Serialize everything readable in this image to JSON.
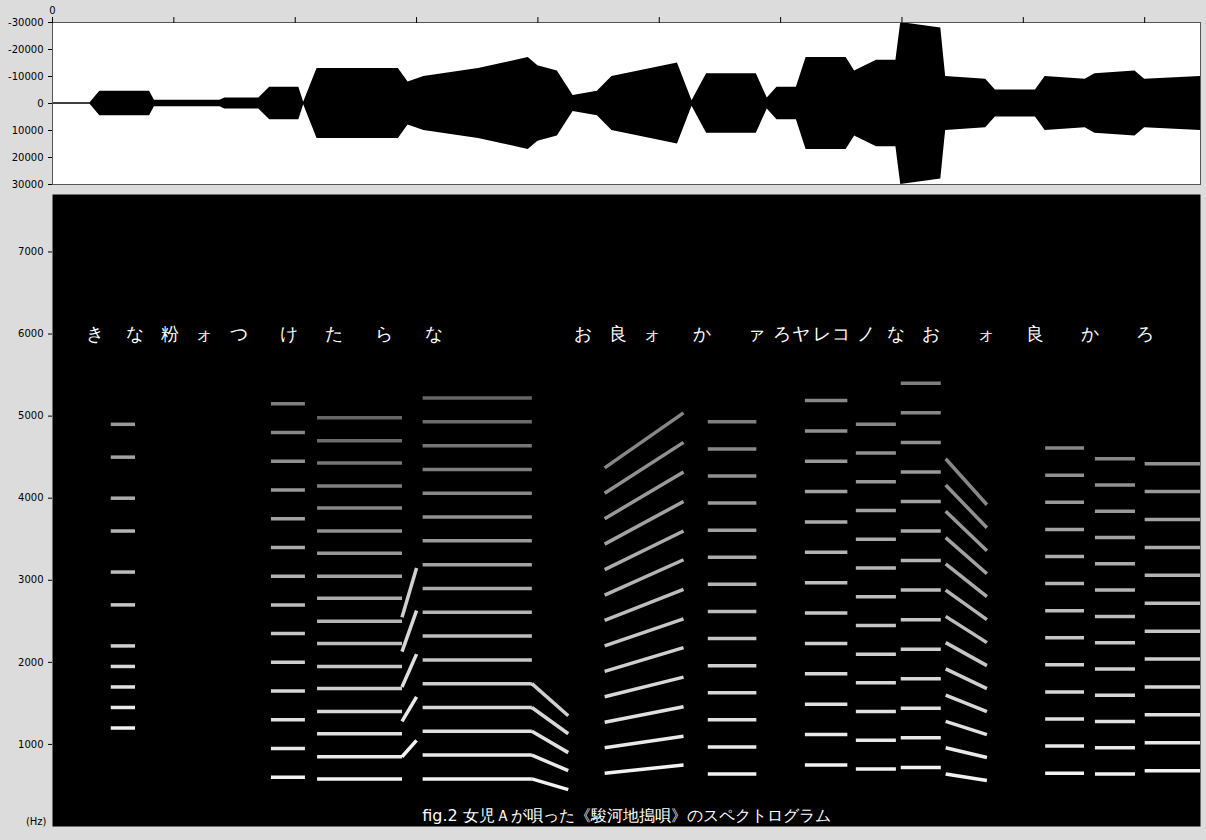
{
  "chart_data": [
    {
      "type": "waveform",
      "color": "#000000",
      "xlim": [
        0,
        9.46
      ],
      "xticks": [
        0
      ],
      "x_minor_ticks": [
        1,
        2,
        3,
        4,
        5,
        6,
        7,
        8,
        9
      ],
      "ylim": [
        -30000,
        30000
      ],
      "yticks": [
        -30000,
        -20000,
        -10000,
        0,
        10000,
        20000,
        30000
      ],
      "envelope": {
        "t": [
          0,
          0.31,
          0.39,
          0.8,
          0.84,
          1.38,
          1.42,
          1.7,
          1.79,
          2.03,
          2.07,
          2.18,
          2.85,
          2.93,
          3.06,
          3.51,
          3.92,
          4.0,
          4.16,
          4.29,
          4.49,
          4.61,
          5.15,
          5.27,
          5.39,
          5.8,
          5.89,
          5.97,
          6.13,
          6.21,
          6.54,
          6.61,
          6.79,
          6.95,
          6.99,
          7.32,
          7.36,
          7.69,
          7.77,
          8.1,
          8.18,
          8.51,
          8.59,
          8.92,
          9.0,
          9.46
        ],
        "amplitude": [
          300,
          300,
          4500,
          4500,
          1200,
          1200,
          2000,
          2000,
          6000,
          6000,
          500,
          13000,
          13000,
          8000,
          10000,
          13000,
          17000,
          14000,
          12000,
          3000,
          4500,
          10000,
          15000,
          1000,
          11000,
          11000,
          2000,
          6000,
          6000,
          17000,
          17000,
          12000,
          16000,
          16000,
          30000,
          28000,
          10000,
          9000,
          5000,
          5000,
          10000,
          9000,
          11000,
          12000,
          9000,
          10000
        ]
      },
      "tick_labels": true
    },
    {
      "type": "spectrogram",
      "color": "#ffffff",
      "caption": "fig.2 女児Ａが唄った《駿河地搗唄》のスペクトログラム",
      "ylabel": "(Hz)",
      "xlim": [
        0,
        9.46
      ],
      "ylim": [
        0,
        7700
      ],
      "yticks": [
        1000,
        2000,
        3000,
        4000,
        5000,
        6000,
        7000
      ],
      "tick_labels": "y",
      "segments": [
        {
          "t": [
            0.48,
            0.68
          ],
          "start": [
            1200,
            1450,
            1700,
            1950,
            2200,
            2700,
            3100,
            3600,
            4000,
            4500,
            4900
          ]
        },
        {
          "t": [
            1.8,
            2.08
          ],
          "start": [
            600,
            950,
            1300,
            1650,
            2000,
            2350,
            2700,
            3050,
            3400,
            3750,
            4100,
            4450,
            4800,
            5150
          ]
        },
        {
          "t": [
            2.18,
            2.88
          ],
          "start": [
            580,
            850,
            1130,
            1400,
            1680,
            1950,
            2230,
            2500,
            2780,
            3050,
            3330,
            3600,
            3880,
            4150,
            4430,
            4700,
            4980
          ]
        },
        {
          "t": [
            2.88,
            3.0
          ],
          "start": [
            850,
            1280,
            1700,
            2130,
            2550
          ],
          "end": [
            1050,
            1580,
            2100,
            2630,
            3150
          ]
        },
        {
          "t": [
            3.05,
            3.95
          ],
          "start": [
            580,
            870,
            1160,
            1450,
            1740,
            2030,
            2320,
            2610,
            2900,
            3190,
            3480,
            3770,
            4060,
            4350,
            4640,
            4930,
            5220
          ]
        },
        {
          "t": [
            3.95,
            4.25
          ],
          "start": [
            580,
            870,
            1160,
            1450,
            1740
          ],
          "end": [
            450,
            680,
            900,
            1130,
            1350
          ]
        },
        {
          "t": [
            4.55,
            5.2
          ],
          "start": [
            650,
            960,
            1270,
            1580,
            1890,
            2200,
            2510,
            2820,
            3130,
            3440,
            3750,
            4060,
            4370
          ],
          "end": [
            750,
            1100,
            1460,
            1820,
            2180,
            2530,
            2890,
            3250,
            3600,
            3960,
            4320,
            4680,
            5040
          ]
        },
        {
          "t": [
            5.4,
            5.8
          ],
          "start": [
            640,
            970,
            1300,
            1630,
            1960,
            2290,
            2620,
            2950,
            3280,
            3610,
            3940,
            4270,
            4600,
            4930
          ]
        },
        {
          "t": [
            6.2,
            6.55
          ],
          "start": [
            750,
            1120,
            1490,
            1860,
            2230,
            2600,
            2970,
            3340,
            3710,
            4080,
            4450,
            4820,
            5190
          ]
        },
        {
          "t": [
            6.62,
            6.95
          ],
          "start": [
            700,
            1050,
            1400,
            1750,
            2100,
            2450,
            2800,
            3150,
            3500,
            3850,
            4200,
            4550,
            4900
          ]
        },
        {
          "t": [
            6.99,
            7.32
          ],
          "start": [
            720,
            1080,
            1440,
            1800,
            2160,
            2520,
            2880,
            3240,
            3600,
            3960,
            4320,
            4680,
            5040,
            5400
          ]
        },
        {
          "t": [
            7.36,
            7.7
          ],
          "start": [
            640,
            960,
            1280,
            1600,
            1920,
            2240,
            2560,
            2880,
            3200,
            3520,
            3840,
            4160,
            4480
          ],
          "end": [
            560,
            840,
            1120,
            1400,
            1680,
            1960,
            2240,
            2520,
            2800,
            3080,
            3360,
            3640,
            3920
          ]
        },
        {
          "t": [
            8.18,
            8.5
          ],
          "start": [
            650,
            980,
            1310,
            1640,
            1970,
            2300,
            2630,
            2960,
            3290,
            3620,
            3950,
            4280,
            4610
          ]
        },
        {
          "t": [
            8.59,
            8.92
          ],
          "start": [
            640,
            960,
            1280,
            1600,
            1920,
            2240,
            2560,
            2880,
            3200,
            3520,
            3840,
            4160,
            4480
          ]
        },
        {
          "t": [
            9.0,
            9.46
          ],
          "start": [
            680,
            1020,
            1360,
            1700,
            2040,
            2380,
            2720,
            3060,
            3400,
            3740,
            4080,
            4420
          ]
        }
      ],
      "lyrics": [
        {
          "text": "き",
          "t": 0.35,
          "f": 6000
        },
        {
          "text": "な",
          "t": 0.68,
          "f": 6000
        },
        {
          "text": "粉",
          "t": 0.97,
          "f": 6000
        },
        {
          "text": "ォ",
          "t": 1.25,
          "f": 6000
        },
        {
          "text": "つ",
          "t": 1.54,
          "f": 6000
        },
        {
          "text": "け",
          "t": 1.95,
          "f": 6000
        },
        {
          "text": "た",
          "t": 2.32,
          "f": 6000
        },
        {
          "text": "ら",
          "t": 2.73,
          "f": 6000
        },
        {
          "text": "な",
          "t": 3.14,
          "f": 6000
        },
        {
          "text": "お",
          "t": 4.37,
          "f": 6000
        },
        {
          "text": "良",
          "t": 4.66,
          "f": 6000
        },
        {
          "text": "ォ",
          "t": 4.94,
          "f": 6000
        },
        {
          "text": "か",
          "t": 5.35,
          "f": 6000
        },
        {
          "text": "ァ",
          "t": 5.8,
          "f": 6000
        },
        {
          "text": "ろ",
          "t": 6.01,
          "f": 6000
        },
        {
          "text": "ヤ",
          "t": 6.17,
          "f": 6000
        },
        {
          "text": "レ",
          "t": 6.34,
          "f": 6000
        },
        {
          "text": "コ",
          "t": 6.5,
          "f": 6000
        },
        {
          "text": "ノ",
          "t": 6.7,
          "f": 6000
        },
        {
          "text": "な",
          "t": 6.95,
          "f": 6000
        },
        {
          "text": "お",
          "t": 7.24,
          "f": 6000
        },
        {
          "text": "ォ",
          "t": 7.69,
          "f": 6000
        },
        {
          "text": "良",
          "t": 8.1,
          "f": 6000
        },
        {
          "text": "か",
          "t": 8.55,
          "f": 6000
        },
        {
          "text": "ろ",
          "t": 9.0,
          "f": 6000
        }
      ]
    }
  ]
}
